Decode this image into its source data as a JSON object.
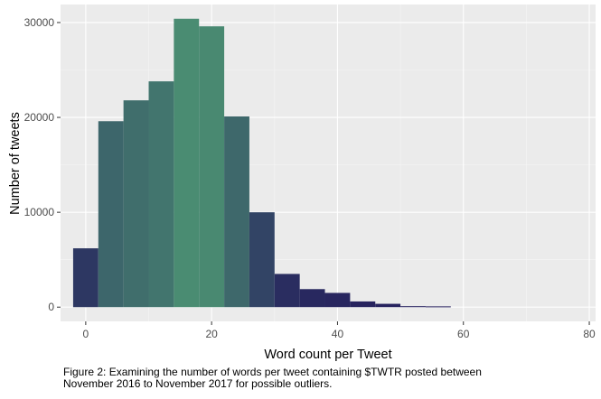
{
  "chart_data": {
    "type": "bar",
    "subtype": "histogram",
    "bin_width": 4,
    "bins": [
      {
        "x": 0,
        "count": 6200
      },
      {
        "x": 4,
        "count": 19600
      },
      {
        "x": 8,
        "count": 21800
      },
      {
        "x": 12,
        "count": 23800
      },
      {
        "x": 16,
        "count": 30400
      },
      {
        "x": 20,
        "count": 29600
      },
      {
        "x": 24,
        "count": 20100
      },
      {
        "x": 28,
        "count": 10000
      },
      {
        "x": 32,
        "count": 3500
      },
      {
        "x": 36,
        "count": 1900
      },
      {
        "x": 40,
        "count": 1500
      },
      {
        "x": 44,
        "count": 600
      },
      {
        "x": 48,
        "count": 350
      },
      {
        "x": 52,
        "count": 100
      },
      {
        "x": 56,
        "count": 80
      }
    ],
    "xlabel": "Word count per Tweet",
    "ylabel": "Number of tweets",
    "xlim": [
      -4,
      81
    ],
    "ylim": [
      -1500,
      31900
    ],
    "x_ticks": [
      0,
      20,
      40,
      60,
      80
    ],
    "y_ticks": [
      0,
      10000,
      20000,
      30000
    ],
    "x_tick_labels": [
      "0",
      "20",
      "40",
      "60",
      "80"
    ],
    "y_tick_labels": [
      "0",
      "10000",
      "20000",
      "30000"
    ],
    "grid": true,
    "legend": "none",
    "color_scale": {
      "low": "#26215e",
      "high": "#4a8c72"
    },
    "panel_background": "#ebebeb"
  },
  "caption": {
    "line1": "Figure 2: Examining the number of words per tweet containing $TWTR posted between",
    "line2": "November 2016 to November 2017 for possible outliers."
  }
}
